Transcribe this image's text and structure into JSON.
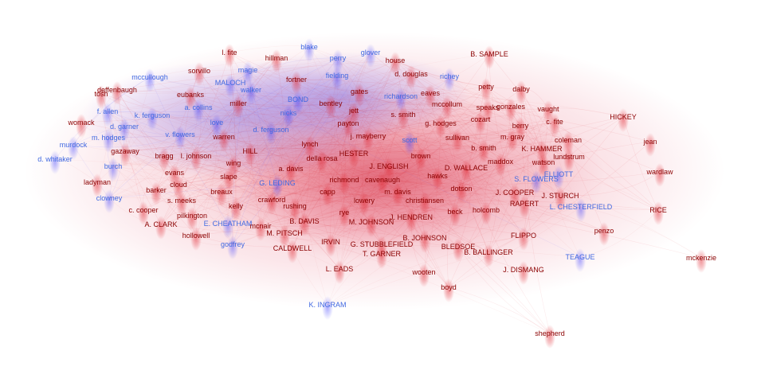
{
  "colors": {
    "red_party": "#8b0000",
    "blue_party": "#4169e1",
    "red_edge": "#e0202a",
    "blue_edge": "#3a3aff"
  },
  "nodes": [
    {
      "label": "l. fite",
      "party": "red"
    },
    {
      "label": "blake",
      "party": "blue"
    },
    {
      "label": "glover",
      "party": "blue"
    },
    {
      "label": "B. SAMPLE",
      "party": "red"
    },
    {
      "label": "hillman",
      "party": "red"
    },
    {
      "label": "perry",
      "party": "blue"
    },
    {
      "label": "house",
      "party": "red"
    },
    {
      "label": "sorvillo",
      "party": "red"
    },
    {
      "label": "magie",
      "party": "blue"
    },
    {
      "label": "mccullough",
      "party": "blue"
    },
    {
      "label": "fortner",
      "party": "red"
    },
    {
      "label": "fielding",
      "party": "blue"
    },
    {
      "label": "d. douglas",
      "party": "red"
    },
    {
      "label": "richey",
      "party": "blue"
    },
    {
      "label": "MALOCH",
      "party": "blue"
    },
    {
      "label": "petty",
      "party": "red"
    },
    {
      "label": "dalby",
      "party": "red"
    },
    {
      "label": "deffenbaugh",
      "party": "red"
    },
    {
      "label": "walker",
      "party": "blue"
    },
    {
      "label": "gates",
      "party": "red"
    },
    {
      "label": "eaves",
      "party": "red"
    },
    {
      "label": "tosh",
      "party": "red"
    },
    {
      "label": "eubanks",
      "party": "red"
    },
    {
      "label": "BOND",
      "party": "blue"
    },
    {
      "label": "richardson",
      "party": "blue"
    },
    {
      "label": "miller",
      "party": "red"
    },
    {
      "label": "bentley",
      "party": "red"
    },
    {
      "label": "mccollum",
      "party": "red"
    },
    {
      "label": "speaks",
      "party": "red"
    },
    {
      "label": "gonzales",
      "party": "red"
    },
    {
      "label": "vaught",
      "party": "red"
    },
    {
      "label": "a. collins",
      "party": "blue"
    },
    {
      "label": "jett",
      "party": "red"
    },
    {
      "label": "f. allen",
      "party": "blue"
    },
    {
      "label": "nicks",
      "party": "blue"
    },
    {
      "label": "s. smith",
      "party": "red"
    },
    {
      "label": "cozart",
      "party": "red"
    },
    {
      "label": "HICKEY",
      "party": "red"
    },
    {
      "label": "k. ferguson",
      "party": "blue"
    },
    {
      "label": "womack",
      "party": "red"
    },
    {
      "label": "love",
      "party": "blue"
    },
    {
      "label": "payton",
      "party": "red"
    },
    {
      "label": "g. hodges",
      "party": "red"
    },
    {
      "label": "c. fite",
      "party": "red"
    },
    {
      "label": "d. garner",
      "party": "blue"
    },
    {
      "label": "d. ferguson",
      "party": "blue"
    },
    {
      "label": "berry",
      "party": "red"
    },
    {
      "label": "v. flowers",
      "party": "blue"
    },
    {
      "label": "j. mayberry",
      "party": "red"
    },
    {
      "label": "m. hodges",
      "party": "blue"
    },
    {
      "label": "scott",
      "party": "blue"
    },
    {
      "label": "sullivan",
      "party": "red"
    },
    {
      "label": "m. gray",
      "party": "red"
    },
    {
      "label": "coleman",
      "party": "red"
    },
    {
      "label": "jean",
      "party": "red"
    },
    {
      "label": "murdock",
      "party": "blue"
    },
    {
      "label": "warren",
      "party": "red"
    },
    {
      "label": "lynch",
      "party": "red"
    },
    {
      "label": "b. smith",
      "party": "red"
    },
    {
      "label": "K. HAMMER",
      "party": "red"
    },
    {
      "label": "gazaway",
      "party": "red"
    },
    {
      "label": "HILL",
      "party": "red"
    },
    {
      "label": "HESTER",
      "party": "red"
    },
    {
      "label": "brown",
      "party": "red"
    },
    {
      "label": "lundstrum",
      "party": "red"
    },
    {
      "label": "d. whitaker",
      "party": "blue"
    },
    {
      "label": "bragg",
      "party": "red"
    },
    {
      "label": "l. johnson",
      "party": "red"
    },
    {
      "label": "della rosa",
      "party": "red"
    },
    {
      "label": "maddox",
      "party": "red"
    },
    {
      "label": "watson",
      "party": "red"
    },
    {
      "label": "burch",
      "party": "blue"
    },
    {
      "label": "wing",
      "party": "red"
    },
    {
      "label": "J. ENGLISH",
      "party": "red"
    },
    {
      "label": "D. WALLACE",
      "party": "red"
    },
    {
      "label": "a. davis",
      "party": "red"
    },
    {
      "label": "ELLIOTT",
      "party": "blue"
    },
    {
      "label": "wardlaw",
      "party": "red"
    },
    {
      "label": "evans",
      "party": "red"
    },
    {
      "label": "slape",
      "party": "red"
    },
    {
      "label": "hawks",
      "party": "red"
    },
    {
      "label": "S. FLOWERS",
      "party": "blue"
    },
    {
      "label": "ladyman",
      "party": "red"
    },
    {
      "label": "cloud",
      "party": "red"
    },
    {
      "label": "richmond",
      "party": "red"
    },
    {
      "label": "cavenaugh",
      "party": "red"
    },
    {
      "label": "G. LEDING",
      "party": "blue"
    },
    {
      "label": "dotson",
      "party": "red"
    },
    {
      "label": "barker",
      "party": "red"
    },
    {
      "label": "breaux",
      "party": "red"
    },
    {
      "label": "capp",
      "party": "red"
    },
    {
      "label": "m. davis",
      "party": "red"
    },
    {
      "label": "J. COOPER",
      "party": "red"
    },
    {
      "label": "J. STURCH",
      "party": "red"
    },
    {
      "label": "clowney",
      "party": "blue"
    },
    {
      "label": "s. meeks",
      "party": "red"
    },
    {
      "label": "crawford",
      "party": "red"
    },
    {
      "label": "lowery",
      "party": "red"
    },
    {
      "label": "christiansen",
      "party": "red"
    },
    {
      "label": "RAPERT",
      "party": "red"
    },
    {
      "label": "kelly",
      "party": "red"
    },
    {
      "label": "rushing",
      "party": "red"
    },
    {
      "label": "L. CHESTERFIELD",
      "party": "blue"
    },
    {
      "label": "RICE",
      "party": "red"
    },
    {
      "label": "c. cooper",
      "party": "red"
    },
    {
      "label": "rye",
      "party": "red"
    },
    {
      "label": "beck",
      "party": "red"
    },
    {
      "label": "holcomb",
      "party": "red"
    },
    {
      "label": "pilkington",
      "party": "red"
    },
    {
      "label": "J. HENDREN",
      "party": "red"
    },
    {
      "label": "E. CHEATHAM",
      "party": "blue"
    },
    {
      "label": "B. DAVIS",
      "party": "red"
    },
    {
      "label": "M. JOHNSON",
      "party": "red"
    },
    {
      "label": "A. CLARK",
      "party": "red"
    },
    {
      "label": "mcnair",
      "party": "red"
    },
    {
      "label": "penzo",
      "party": "red"
    },
    {
      "label": "hollowell",
      "party": "red"
    },
    {
      "label": "M. PITSCH",
      "party": "red"
    },
    {
      "label": "FLIPPO",
      "party": "red"
    },
    {
      "label": "B. JOHNSON",
      "party": "red"
    },
    {
      "label": "IRVIN",
      "party": "red"
    },
    {
      "label": "godfrey",
      "party": "blue"
    },
    {
      "label": "G. STUBBLEFIELD",
      "party": "red"
    },
    {
      "label": "BLEDSOE",
      "party": "red"
    },
    {
      "label": "CALDWELL",
      "party": "red"
    },
    {
      "label": "B. BALLINGER",
      "party": "red"
    },
    {
      "label": "T. GARNER",
      "party": "red"
    },
    {
      "label": "TEAGUE",
      "party": "blue"
    },
    {
      "label": "mckenzie",
      "party": "red"
    },
    {
      "label": "L. EADS",
      "party": "red"
    },
    {
      "label": "J. DISMANG",
      "party": "red"
    },
    {
      "label": "wooten",
      "party": "red"
    },
    {
      "label": "boyd",
      "party": "red"
    },
    {
      "label": "K. INGRAM",
      "party": "blue"
    },
    {
      "label": "shepherd",
      "party": "red"
    }
  ]
}
